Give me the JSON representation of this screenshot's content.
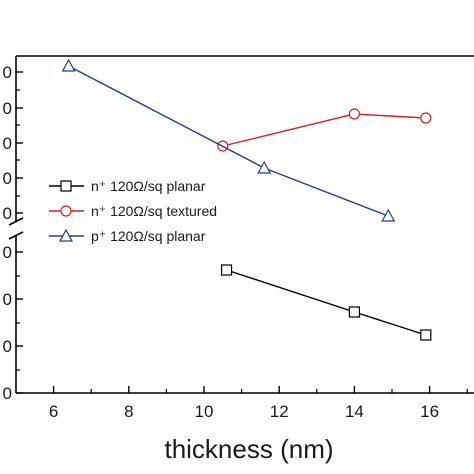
{
  "chart_data": {
    "type": "line",
    "xlabel": "thickness (nm)",
    "xlim": [
      5,
      17
    ],
    "x_ticks": [
      6,
      8,
      10,
      12,
      14,
      16
    ],
    "x_tick_labels": [
      "6",
      "8",
      "10",
      "12",
      "14",
      "16"
    ],
    "y_tick_labels": [
      "0",
      "0",
      "0",
      "0",
      "0",
      "0",
      "0",
      "0",
      "0"
    ],
    "y_axis_break": true,
    "grid": false,
    "legend_position": "left",
    "series": [
      {
        "name": "n⁺ 120Ω/sq planar",
        "marker": "square",
        "color": "#000000",
        "points": [
          {
            "x": 10.6,
            "y": 270
          },
          {
            "x": 14.0,
            "y": 312
          },
          {
            "x": 15.9,
            "y": 335
          }
        ]
      },
      {
        "name": "n⁺ 120Ω/sq textured",
        "marker": "circle",
        "color": "#d42020",
        "points": [
          {
            "x": 10.5,
            "y": 146
          },
          {
            "x": 14.0,
            "y": 114
          },
          {
            "x": 15.9,
            "y": 118
          }
        ]
      },
      {
        "name": "p⁺ 120Ω/sq planar",
        "marker": "triangle",
        "color": "#1f3f8f",
        "points": [
          {
            "x": 6.4,
            "y": 66
          },
          {
            "x": 11.6,
            "y": 168
          },
          {
            "x": 14.9,
            "y": 216
          }
        ]
      }
    ]
  }
}
